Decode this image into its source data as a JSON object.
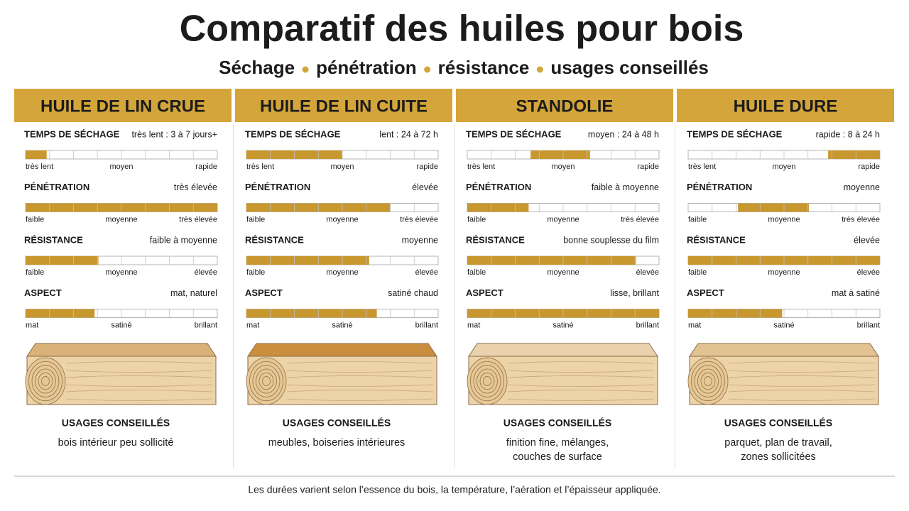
{
  "header": {
    "title": "Comparatif des huiles pour bois",
    "subtitle": [
      "Séchage",
      "pénétration",
      "résistance",
      "usages conseillés"
    ]
  },
  "gauge_segments": 8,
  "oils": [
    {
      "name": "HUILE DE LIN CRUE",
      "wood_color": "#d9b27a",
      "criteria": [
        {
          "label": "TEMPS DE SÉCHAGE",
          "value": "très lent : 3 à 7 jours+",
          "range": [
            0,
            0.11
          ],
          "scale": [
            "très lent",
            "moyen",
            "rapide"
          ]
        },
        {
          "label": "PÉNÉTRATION",
          "value": "très élevée",
          "range": [
            0,
            1
          ],
          "scale": [
            "faible",
            "moyenne",
            "très élevée"
          ]
        },
        {
          "label": "RÉSISTANCE",
          "value": "faible à moyenne",
          "range": [
            0,
            0.38
          ],
          "scale": [
            "faible",
            "moyenne",
            "élevée"
          ]
        },
        {
          "label": "ASPECT",
          "value": "mat, naturel",
          "range": [
            0,
            0.36
          ],
          "scale": [
            "mat",
            "satiné",
            "brillant"
          ]
        }
      ],
      "usage_title": "USAGES CONSEILLÉS",
      "usage": [
        "bois intérieur peu sollicité"
      ]
    },
    {
      "name": "HUILE DE LIN CUITE",
      "wood_color": "#c98f3e",
      "criteria": [
        {
          "label": "TEMPS DE SÉCHAGE",
          "value": "lent : 24 à 72 h",
          "range": [
            0,
            0.5
          ],
          "scale": [
            "très lent",
            "moyen",
            "rapide"
          ]
        },
        {
          "label": "PÉNÉTRATION",
          "value": "élevée",
          "range": [
            0,
            0.75
          ],
          "scale": [
            "faible",
            "moyenne",
            "très élevée"
          ]
        },
        {
          "label": "RÉSISTANCE",
          "value": "moyenne",
          "range": [
            0,
            0.64
          ],
          "scale": [
            "faible",
            "moyenne",
            "élevée"
          ]
        },
        {
          "label": "ASPECT",
          "value": "satiné chaud",
          "range": [
            0,
            0.68
          ],
          "scale": [
            "mat",
            "satiné",
            "brillant"
          ]
        }
      ],
      "usage_title": "USAGES CONSEILLÉS",
      "usage": [
        "meubles, boiseries intérieures"
      ]
    },
    {
      "name": "STANDOLIE",
      "wood_color": "#ead2ae",
      "criteria": [
        {
          "label": "TEMPS DE SÉCHAGE",
          "value": "moyen : 24 à 48 h",
          "range": [
            0.33,
            0.64
          ],
          "scale": [
            "très lent",
            "moyen",
            "rapide"
          ]
        },
        {
          "label": "PÉNÉTRATION",
          "value": "faible à moyenne",
          "range": [
            0,
            0.32
          ],
          "scale": [
            "faible",
            "moyenne",
            "très élevée"
          ]
        },
        {
          "label": "RÉSISTANCE",
          "value": "bonne souplesse du film",
          "range": [
            0,
            0.88
          ],
          "scale": [
            "faible",
            "moyenne",
            "élevée"
          ]
        },
        {
          "label": "ASPECT",
          "value": "lisse, brillant",
          "range": [
            0,
            1
          ],
          "scale": [
            "mat",
            "satiné",
            "brillant"
          ]
        }
      ],
      "usage_title": "USAGES CONSEILLÉS",
      "usage": [
        "finition fine, mélanges,",
        "couches de surface"
      ]
    },
    {
      "name": "HUILE DURE",
      "wood_color": "#e2c292",
      "criteria": [
        {
          "label": "TEMPS DE SÉCHAGE",
          "value": "rapide : 8 à 24 h",
          "range": [
            0.73,
            1
          ],
          "scale": [
            "très lent",
            "moyen",
            "rapide"
          ]
        },
        {
          "label": "PÉNÉTRATION",
          "value": "moyenne",
          "range": [
            0.26,
            0.63
          ],
          "scale": [
            "faible",
            "moyenne",
            "très élevée"
          ]
        },
        {
          "label": "RÉSISTANCE",
          "value": "élevée",
          "range": [
            0,
            1
          ],
          "scale": [
            "faible",
            "moyenne",
            "élevée"
          ]
        },
        {
          "label": "ASPECT",
          "value": "mat à satiné",
          "range": [
            0,
            0.49
          ],
          "scale": [
            "mat",
            "satiné",
            "brillant"
          ]
        }
      ],
      "usage_title": "USAGES CONSEILLÉS",
      "usage": [
        "parquet, plan de travail,",
        "zones sollicitées"
      ]
    }
  ],
  "footer": "Les durées varient selon l’essence du bois, la température, l’aération et l’épaisseur appliquée."
}
